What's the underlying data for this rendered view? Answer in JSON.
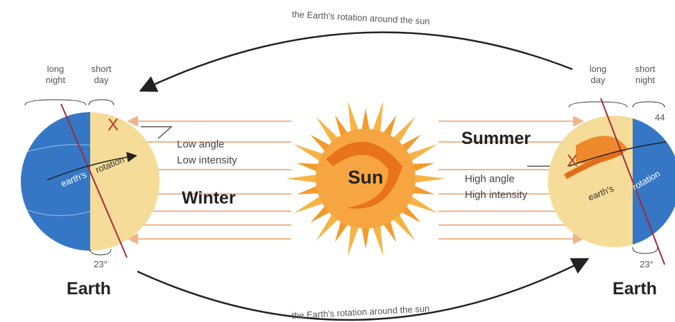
{
  "orbit": {
    "top_label": "the Earth's rotation around the sun",
    "bottom_label": "the Earth's rotation around the sun"
  },
  "sun": {
    "label": "Sun"
  },
  "winter": {
    "season": "Winter",
    "angle": "Low angle",
    "intensity": "Low intensity",
    "earth": {
      "label": "Earth",
      "tilt": "23°",
      "caption_left": [
        "long",
        "night"
      ],
      "caption_right": [
        "short",
        "day"
      ],
      "axis_words": [
        "earth's",
        "rotation"
      ],
      "marker": "X"
    }
  },
  "summer": {
    "season": "Summer",
    "angle": "High angle",
    "intensity": "High intensity",
    "earth": {
      "label": "Earth",
      "tilt": "23°",
      "caption_left": [
        "long",
        "day"
      ],
      "caption_right": [
        "short",
        "night"
      ],
      "axis_words": [
        "earth's",
        "rotation"
      ],
      "marker": "X",
      "latitude": "44"
    }
  }
}
